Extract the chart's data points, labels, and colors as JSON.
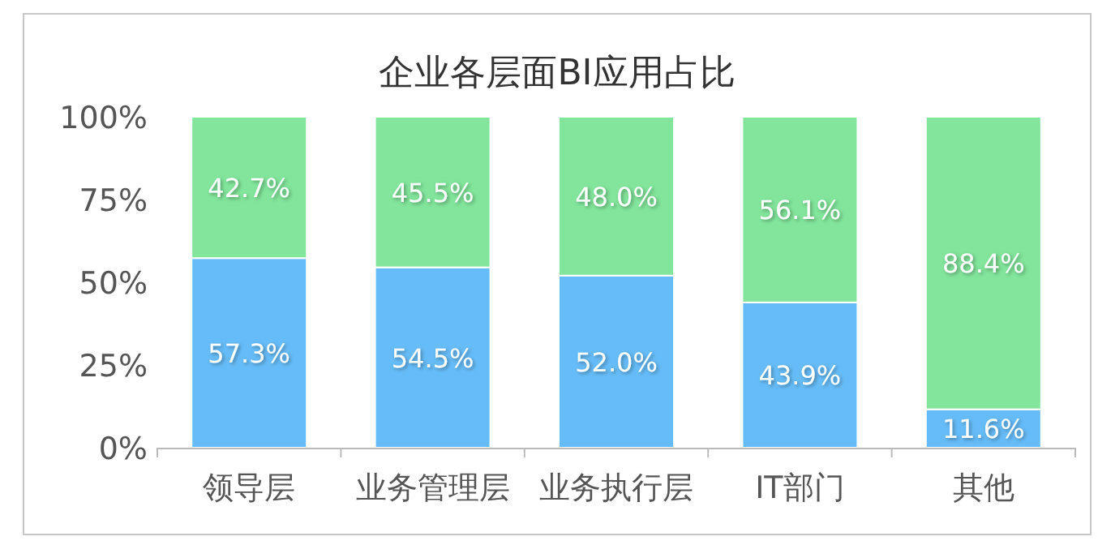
{
  "chart_data": {
    "type": "bar",
    "title": "企业各层面BI应用占比",
    "categories": [
      "领导层",
      "业务管理层",
      "业务执行层",
      "IT部门",
      "其他"
    ],
    "stacked": true,
    "grid": false,
    "series": [
      {
        "color": "#66bcf8",
        "values": [
          57.3,
          54.5,
          52.0,
          43.9,
          11.6
        ],
        "value_labels": [
          "57.3%",
          "54.5%",
          "52.0%",
          "43.9%",
          "11.6%"
        ]
      },
      {
        "color": "#82e59b",
        "values": [
          42.7,
          45.5,
          48.0,
          56.1,
          88.4
        ],
        "value_labels": [
          "42.7%",
          "45.5%",
          "48.0%",
          "56.1%",
          "88.4%"
        ]
      }
    ],
    "ylim": [
      0,
      100
    ],
    "yticks": [
      {
        "value": 0,
        "label": "0%"
      },
      {
        "value": 25,
        "label": "25%"
      },
      {
        "value": 50,
        "label": "50%"
      },
      {
        "value": 75,
        "label": "75%"
      },
      {
        "value": 100,
        "label": "100%"
      }
    ]
  }
}
